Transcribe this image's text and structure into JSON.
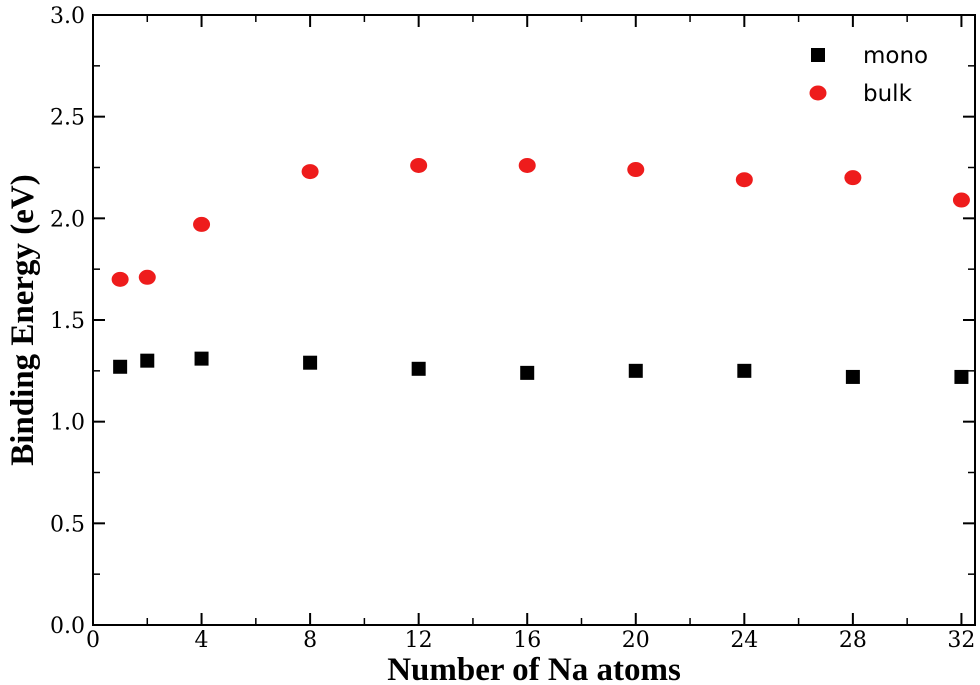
{
  "chart_data": {
    "type": "scatter",
    "xlabel": "Number of Na atoms",
    "ylabel": "Binding Energy (eV)",
    "xlim": [
      0,
      32.5
    ],
    "ylim": [
      0,
      3.0
    ],
    "x_ticks": [
      0,
      4,
      8,
      12,
      16,
      20,
      24,
      28,
      32
    ],
    "y_ticks": [
      0.0,
      0.5,
      1.0,
      1.5,
      2.0,
      2.5,
      3.0
    ],
    "x_tick_labels": [
      "0",
      "4",
      "8",
      "12",
      "16",
      "20",
      "24",
      "28",
      "32"
    ],
    "y_tick_labels": [
      "0.0",
      "0.5",
      "1.0",
      "1.5",
      "2.0",
      "2.5",
      "3.0"
    ],
    "grid": false,
    "legend_position": "top-right",
    "series": [
      {
        "name": "mono",
        "marker": "square",
        "color": "#000000",
        "x": [
          1,
          2,
          4,
          8,
          12,
          16,
          20,
          24,
          28,
          32
        ],
        "y": [
          1.27,
          1.3,
          1.31,
          1.29,
          1.26,
          1.24,
          1.25,
          1.25,
          1.22,
          1.22
        ]
      },
      {
        "name": "bulk",
        "marker": "circle",
        "color": "#ee1c1c",
        "x": [
          1,
          2,
          4,
          8,
          12,
          16,
          20,
          24,
          28,
          32
        ],
        "y": [
          1.7,
          1.71,
          1.97,
          2.23,
          2.26,
          2.26,
          2.24,
          2.19,
          2.2,
          2.09
        ]
      }
    ]
  }
}
